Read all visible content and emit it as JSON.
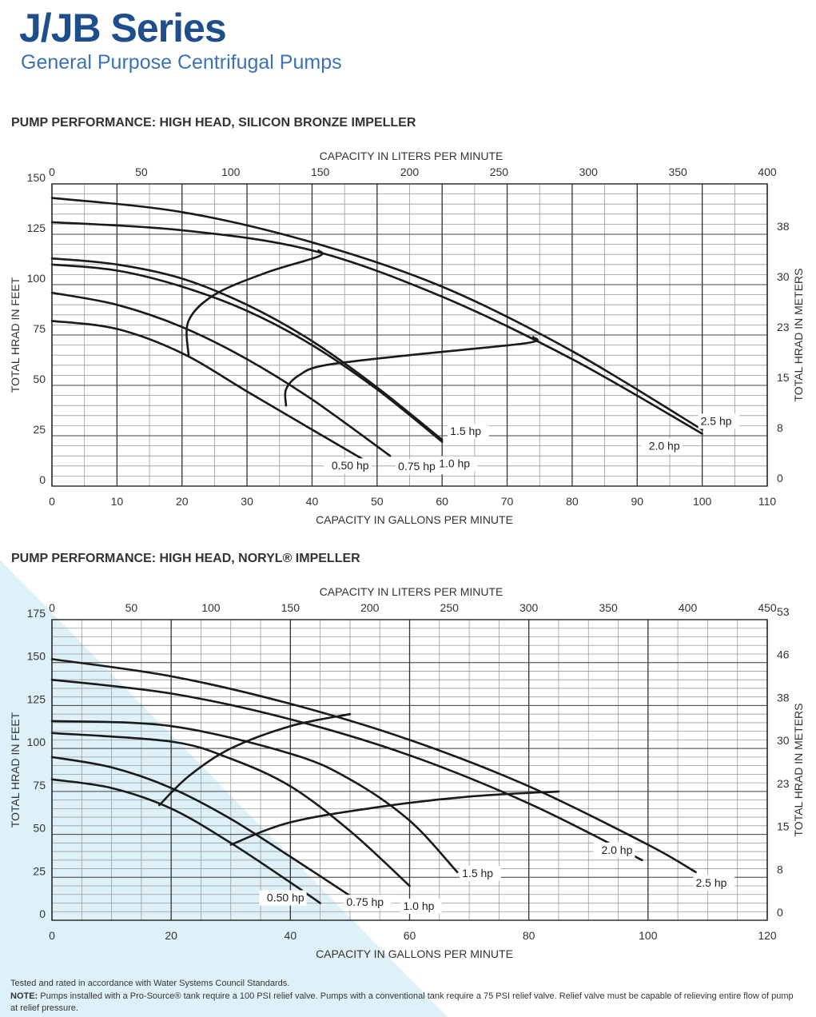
{
  "header": {
    "title": "J/JB Series",
    "subtitle": "General Purpose Centrifugal Pumps"
  },
  "sections": [
    {
      "heading": "PUMP PERFORMANCE:  HIGH HEAD, SILICON BRONZE IMPELLER"
    },
    {
      "heading": "PUMP PERFORMANCE:  HIGH HEAD, NORYL® IMPELLER"
    }
  ],
  "footer": {
    "line1": "Tested and rated in accordance with Water Systems Council Standards.",
    "note_label": "NOTE:",
    "note_text": " Pumps installed with a Pro-Source® tank require a 100 PSI relief valve. Pumps with a conventional tank require a 75 PSI relief valve. Relief valve must be capable of relieving entire flow of pump at relief pressure."
  },
  "colors": {
    "title": "#1f4e8c",
    "subtitle": "#3a73b5",
    "curve": "#1a1a1a",
    "grid": "#555555",
    "background_accent": "#dff1f8"
  },
  "chart_data": [
    {
      "type": "line",
      "title": "PUMP PERFORMANCE:  HIGH HEAD, SILICON BRONZE IMPELLER",
      "xlabel": "CAPACITY IN GALLONS PER MINUTE",
      "x2label": "CAPACITY IN LITERS PER MINUTE",
      "ylabel": "TOTAL HRAD IN FEET",
      "y2label": "TOTAL HRAD IN METERS",
      "xlim": [
        0,
        110
      ],
      "ylim": [
        0,
        150
      ],
      "x_ticks": [
        0,
        10,
        20,
        30,
        40,
        50,
        60,
        70,
        80,
        90,
        100,
        110
      ],
      "y_ticks": [
        0,
        25,
        50,
        75,
        100,
        125,
        150
      ],
      "x2_ticks": [
        "0",
        "50",
        "100",
        "150",
        "200",
        "250",
        "300",
        "350",
        "400"
      ],
      "y2_ticks": [
        "0",
        "8",
        "15",
        "23",
        "30",
        "38"
      ],
      "grid": true,
      "series": [
        {
          "name": "0.50 hp",
          "x": [
            0,
            10,
            20,
            30,
            40,
            48
          ],
          "y": [
            82,
            78,
            66,
            47,
            28,
            13
          ]
        },
        {
          "name": "0.75 hp",
          "x": [
            0,
            10,
            20,
            30,
            40,
            52
          ],
          "y": [
            96,
            90,
            79,
            63,
            43,
            15
          ]
        },
        {
          "name": "1.0 hp",
          "x": [
            0,
            10,
            20,
            30,
            40,
            50,
            60
          ],
          "y": [
            110,
            107,
            99,
            87,
            70,
            48,
            22
          ]
        },
        {
          "name": "1.5 hp",
          "x": [
            0,
            10,
            20,
            30,
            40,
            50,
            60
          ],
          "y": [
            113,
            110,
            103,
            90,
            72,
            49,
            23
          ]
        },
        {
          "name": "2.0 hp",
          "x": [
            0,
            20,
            40,
            60,
            80,
            100
          ],
          "y": [
            131,
            127,
            117,
            94,
            63,
            26
          ]
        },
        {
          "name": "2.5 hp",
          "x": [
            0,
            20,
            40,
            60,
            80,
            100
          ],
          "y": [
            143,
            136,
            121,
            99,
            67,
            28
          ]
        }
      ],
      "envelopes": [
        {
          "x": [
            21,
            21,
            25,
            33,
            41,
            41
          ],
          "y": [
            65,
            82,
            95,
            106,
            114,
            117
          ]
        },
        {
          "x": [
            36,
            36,
            38,
            42,
            55,
            73,
            74
          ],
          "y": [
            40,
            48,
            55,
            60,
            65,
            71,
            74
          ]
        }
      ]
    },
    {
      "type": "line",
      "title": "PUMP PERFORMANCE:  HIGH HEAD, NORYL® IMPELLER",
      "xlabel": "CAPACITY IN GALLONS PER MINUTE",
      "x2label": "CAPACITY IN LITERS PER MINUTE",
      "ylabel": "TOTAL HRAD IN FEET",
      "y2label": "TOTAL HRAD IN METERS",
      "xlim": [
        0,
        120
      ],
      "ylim": [
        0,
        175
      ],
      "x_ticks": [
        0,
        20,
        40,
        60,
        80,
        100,
        120
      ],
      "y_ticks": [
        0,
        25,
        50,
        75,
        100,
        125,
        150,
        175
      ],
      "x2_ticks": [
        "0",
        "50",
        "100",
        "150",
        "200",
        "250",
        "300",
        "350",
        "400",
        "450"
      ],
      "y2_ticks": [
        "0",
        "8",
        "15",
        "23",
        "30",
        "38",
        "46",
        "53"
      ],
      "grid": true,
      "series": [
        {
          "name": "0.50 hp",
          "x": [
            0,
            10,
            20,
            30,
            40,
            45
          ],
          "y": [
            82,
            77,
            65,
            45,
            22,
            10
          ]
        },
        {
          "name": "0.75 hp",
          "x": [
            0,
            10,
            20,
            30,
            40,
            51
          ],
          "y": [
            95,
            89,
            77,
            59,
            37,
            12
          ]
        },
        {
          "name": "1.0 hp",
          "x": [
            0,
            20,
            30,
            40,
            50,
            60
          ],
          "y": [
            109,
            104,
            94,
            78,
            52,
            20
          ]
        },
        {
          "name": "1.5 hp",
          "x": [
            0,
            20,
            40,
            50,
            60,
            68
          ],
          "y": [
            116,
            113,
            97,
            82,
            58,
            28
          ]
        },
        {
          "name": "2.0 hp",
          "x": [
            0,
            20,
            40,
            60,
            80,
            99
          ],
          "y": [
            140,
            132,
            117,
            96,
            68,
            35
          ]
        },
        {
          "name": "2.5 hp",
          "x": [
            0,
            20,
            40,
            60,
            80,
            100,
            108
          ],
          "y": [
            152,
            142,
            126,
            105,
            78,
            44,
            28
          ]
        }
      ],
      "envelopes": [
        {
          "x": [
            18,
            23,
            30,
            40,
            50
          ],
          "y": [
            67,
            84,
            100,
            113,
            120
          ]
        },
        {
          "x": [
            30,
            40,
            55,
            70,
            85
          ],
          "y": [
            44,
            57,
            66,
            72,
            75
          ]
        }
      ]
    }
  ]
}
